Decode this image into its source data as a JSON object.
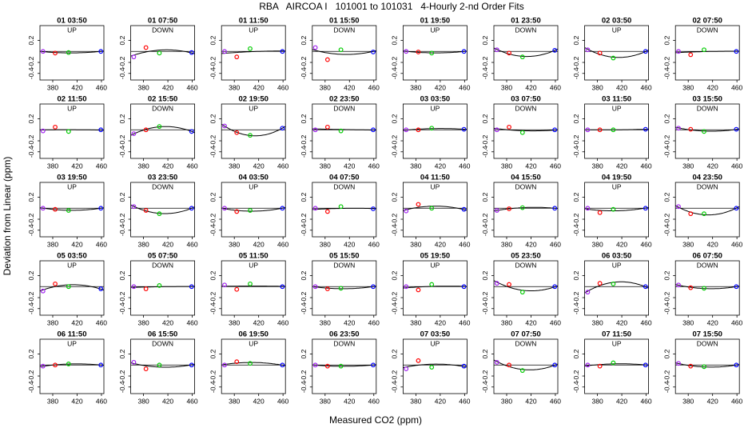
{
  "chart_data": {
    "type": "scatter",
    "title": "RBA   AIRCOA I   101001 to 101031   4-Hourly 2-nd Order Fits",
    "xlabel": "Measured CO2 (ppm)",
    "ylabel": "Deviation from Linear (ppm)",
    "xlim": [
      359,
      464
    ],
    "ylim": [
      -0.52,
      0.47
    ],
    "xticks": [
      380,
      420,
      460
    ],
    "yticks": [
      -0.4,
      -0.2,
      0.2
    ],
    "x": [
      364,
      384,
      406,
      459
    ],
    "colors": [
      "#a020f0",
      "#ff0000",
      "#00cc00",
      "#0000ff"
    ],
    "panels": [
      {
        "title": "01 03:50",
        "subtitle": "UP",
        "values": [
          0.0,
          -0.03,
          -0.02,
          0.0
        ]
      },
      {
        "title": "01 07:50",
        "subtitle": "DOWN",
        "values": [
          -0.1,
          0.07,
          -0.03,
          -0.02
        ]
      },
      {
        "title": "01 11:50",
        "subtitle": "UP",
        "values": [
          0.0,
          -0.1,
          0.05,
          0.0
        ]
      },
      {
        "title": "01 15:50",
        "subtitle": "DOWN",
        "values": [
          0.07,
          -0.15,
          0.03,
          -0.01
        ]
      },
      {
        "title": "01 19:50",
        "subtitle": "UP",
        "values": [
          0.0,
          -0.01,
          -0.03,
          0.0
        ]
      },
      {
        "title": "01 23:50",
        "subtitle": "DOWN",
        "values": [
          0.03,
          -0.03,
          -0.1,
          0.02
        ]
      },
      {
        "title": "02 03:50",
        "subtitle": "UP",
        "values": [
          0.03,
          -0.03,
          -0.12,
          0.0
        ]
      },
      {
        "title": "02 07:50",
        "subtitle": "DOWN",
        "values": [
          0.0,
          -0.06,
          0.03,
          0.0
        ]
      },
      {
        "title": "02 11:50",
        "subtitle": "UP",
        "values": [
          -0.02,
          0.05,
          -0.03,
          0.0
        ]
      },
      {
        "title": "02 15:50",
        "subtitle": "DOWN",
        "values": [
          -0.07,
          0.0,
          0.06,
          -0.03
        ]
      },
      {
        "title": "02 19:50",
        "subtitle": "UP",
        "values": [
          0.07,
          -0.05,
          -0.1,
          0.03
        ]
      },
      {
        "title": "02 23:50",
        "subtitle": "DOWN",
        "values": [
          0.0,
          0.05,
          -0.02,
          0.0
        ]
      },
      {
        "title": "03 03:50",
        "subtitle": "UP",
        "values": [
          0.0,
          0.0,
          0.03,
          0.01
        ]
      },
      {
        "title": "03 07:50",
        "subtitle": "DOWN",
        "values": [
          0.0,
          0.05,
          -0.05,
          0.0
        ]
      },
      {
        "title": "03 11:50",
        "subtitle": "UP",
        "values": [
          0.0,
          0.0,
          0.0,
          0.01
        ]
      },
      {
        "title": "03 15:50",
        "subtitle": "DOWN",
        "values": [
          0.03,
          0.01,
          -0.03,
          0.01
        ]
      },
      {
        "title": "03 19:50",
        "subtitle": "UP",
        "values": [
          0.0,
          -0.02,
          -0.04,
          0.0
        ]
      },
      {
        "title": "03 23:50",
        "subtitle": "DOWN",
        "values": [
          0.03,
          -0.04,
          -0.1,
          0.0
        ]
      },
      {
        "title": "04 03:50",
        "subtitle": "UP",
        "values": [
          0.0,
          -0.06,
          -0.04,
          0.0
        ]
      },
      {
        "title": "04 07:50",
        "subtitle": "DOWN",
        "values": [
          0.0,
          -0.06,
          0.03,
          -0.01
        ]
      },
      {
        "title": "04 11:50",
        "subtitle": "UP",
        "values": [
          -0.05,
          0.07,
          0.0,
          -0.02
        ]
      },
      {
        "title": "04 15:50",
        "subtitle": "DOWN",
        "values": [
          -0.04,
          -0.01,
          0.01,
          0.0
        ]
      },
      {
        "title": "04 19:50",
        "subtitle": "UP",
        "values": [
          0.0,
          -0.08,
          -0.02,
          0.0
        ]
      },
      {
        "title": "04 23:50",
        "subtitle": "DOWN",
        "values": [
          0.03,
          -0.1,
          -0.1,
          0.0
        ]
      },
      {
        "title": "05 03:50",
        "subtitle": "UP",
        "values": [
          -0.08,
          0.05,
          0.0,
          -0.04
        ]
      },
      {
        "title": "05 07:50",
        "subtitle": "DOWN",
        "values": [
          0.0,
          -0.04,
          0.02,
          0.0
        ]
      },
      {
        "title": "05 11:50",
        "subtitle": "UP",
        "values": [
          0.03,
          -0.05,
          0.05,
          0.0
        ]
      },
      {
        "title": "05 15:50",
        "subtitle": "DOWN",
        "values": [
          0.0,
          -0.04,
          -0.03,
          0.0
        ]
      },
      {
        "title": "05 19:50",
        "subtitle": "UP",
        "values": [
          0.0,
          -0.06,
          0.04,
          0.0
        ]
      },
      {
        "title": "05 23:50",
        "subtitle": "DOWN",
        "values": [
          0.06,
          0.04,
          -0.1,
          0.0
        ]
      },
      {
        "title": "06 03:50",
        "subtitle": "UP",
        "values": [
          -0.1,
          0.06,
          0.05,
          0.0
        ]
      },
      {
        "title": "06 07:50",
        "subtitle": "DOWN",
        "values": [
          0.03,
          -0.02,
          -0.03,
          0.0
        ]
      },
      {
        "title": "06 11:50",
        "subtitle": "UP",
        "values": [
          -0.02,
          0.0,
          0.02,
          0.0
        ]
      },
      {
        "title": "06 15:50",
        "subtitle": "DOWN",
        "values": [
          0.05,
          -0.07,
          0.0,
          0.0
        ]
      },
      {
        "title": "06 19:50",
        "subtitle": "UP",
        "values": [
          0.0,
          0.06,
          0.03,
          0.0
        ]
      },
      {
        "title": "06 23:50",
        "subtitle": "DOWN",
        "values": [
          0.0,
          -0.02,
          -0.02,
          0.0
        ]
      },
      {
        "title": "07 03:50",
        "subtitle": "UP",
        "values": [
          -0.07,
          0.08,
          -0.04,
          -0.02
        ]
      },
      {
        "title": "07 07:50",
        "subtitle": "DOWN",
        "values": [
          0.05,
          0.0,
          -0.1,
          0.0
        ]
      },
      {
        "title": "07 11:50",
        "subtitle": "UP",
        "values": [
          0.0,
          -0.02,
          0.04,
          0.0
        ]
      },
      {
        "title": "07 15:50",
        "subtitle": "DOWN",
        "values": [
          0.03,
          -0.02,
          -0.03,
          0.0
        ]
      }
    ]
  }
}
